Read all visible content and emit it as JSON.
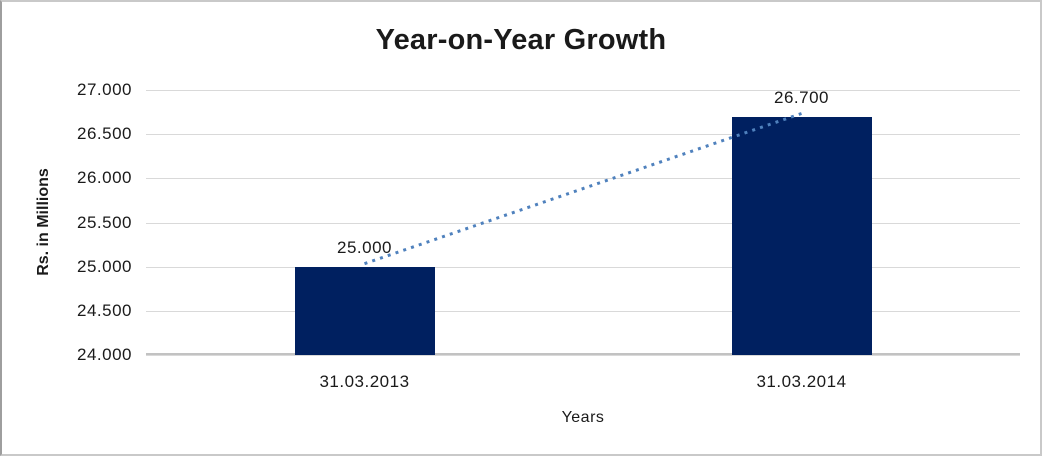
{
  "frame": {
    "background": "#FFFFFF",
    "border_color": "#C9C9C9"
  },
  "chart_data": {
    "type": "bar",
    "title": "Year-on-Year Growth",
    "xlabel": "Years",
    "ylabel": "Rs. in Millions",
    "categories": [
      "31.03.2013",
      "31.03.2014"
    ],
    "values": [
      25000,
      26700
    ],
    "data_labels": [
      "25.000",
      "26.700"
    ],
    "ylim": [
      24000,
      27000
    ],
    "ytick_step": 500,
    "yticks": [
      {
        "value": 24000,
        "label": "24.000"
      },
      {
        "value": 24500,
        "label": "24.500"
      },
      {
        "value": 25000,
        "label": "25.000"
      },
      {
        "value": 25500,
        "label": "25.500"
      },
      {
        "value": 26000,
        "label": "26.000"
      },
      {
        "value": 26500,
        "label": "26.500"
      },
      {
        "value": 27000,
        "label": "27.000"
      }
    ],
    "grid": true,
    "legend": "none",
    "bar_color": "#002060",
    "gridline_color": "#D9D9D9",
    "axis_line_color": "#C2C2C2",
    "text_color": "#1A1A1A",
    "trendline": {
      "type": "linear",
      "style": "dotted",
      "color": "#4F81BD",
      "from_value": 25000,
      "to_value": 26700
    }
  }
}
